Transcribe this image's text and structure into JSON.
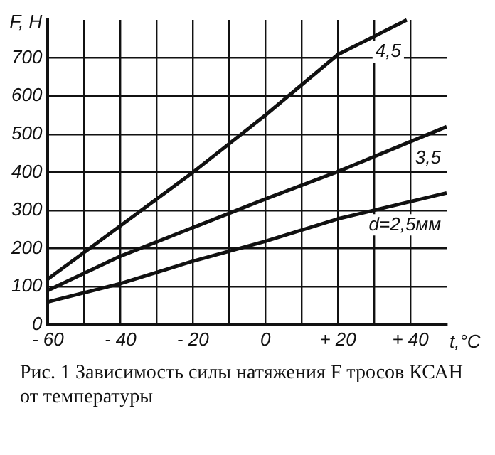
{
  "chart_data": {
    "type": "line",
    "title": "Рис. 1   Зависимость силы натяжения F тросов КСАН от температуры",
    "xlabel": "t,°C",
    "ylabel": "F, H",
    "xlim": [
      -60,
      50
    ],
    "ylim": [
      0,
      800
    ],
    "xticks": [
      {
        "value": -60,
        "label": "- 60"
      },
      {
        "value": -50,
        "label": null
      },
      {
        "value": -40,
        "label": "- 40"
      },
      {
        "value": -30,
        "label": null
      },
      {
        "value": -20,
        "label": "- 20"
      },
      {
        "value": -10,
        "label": null
      },
      0,
      {
        "value": 10,
        "label": null
      },
      {
        "value": 20,
        "label": "+ 20"
      },
      {
        "value": 30,
        "label": null
      },
      {
        "value": 40,
        "label": "+ 40"
      }
    ],
    "yticks": [
      0,
      100,
      200,
      300,
      400,
      500,
      600,
      700
    ],
    "grid": true,
    "legend": false,
    "marker": "none",
    "line_style": "solid",
    "series": [
      {
        "name": "4,5",
        "color": "#111111",
        "x": [
          -60,
          -40,
          -20,
          0,
          20,
          39
        ],
        "values": [
          120,
          260,
          400,
          550,
          709,
          800
        ]
      },
      {
        "name": "3,5",
        "color": "#111111",
        "x": [
          -60,
          -40,
          -20,
          0,
          20,
          50
        ],
        "values": [
          90,
          180,
          255,
          330,
          402,
          520
        ]
      },
      {
        "name": "d=2,5мм",
        "color": "#111111",
        "x": [
          -60,
          -40,
          -20,
          0,
          20,
          50
        ],
        "values": [
          60,
          108,
          167,
          219,
          278,
          346
        ]
      }
    ]
  }
}
